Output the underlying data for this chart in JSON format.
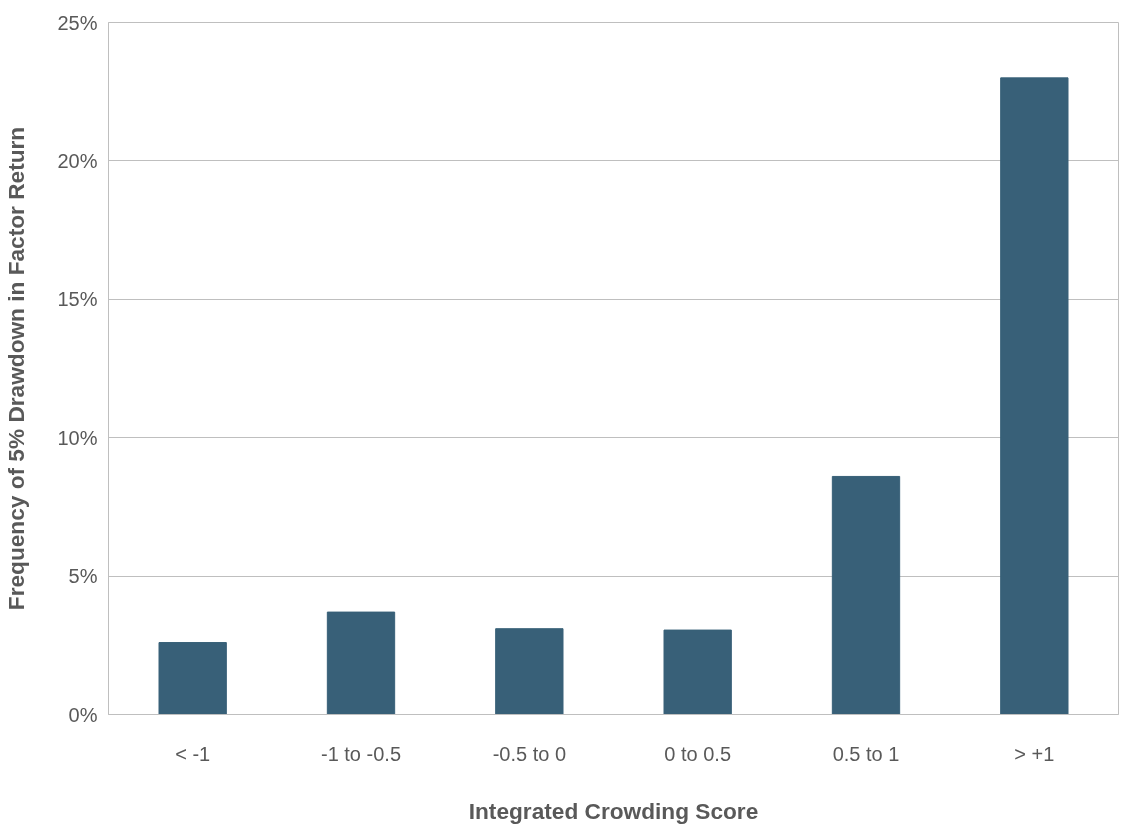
{
  "chart_data": {
    "type": "bar",
    "xlabel": "Integrated Crowding Score",
    "ylabel": "Frequency of 5% Drawdown in Factor Return",
    "categories": [
      "< -1",
      "-1 to -0.5",
      "-0.5 to 0",
      "0 to 0.5",
      "0.5 to 1",
      "> +1"
    ],
    "series": [
      {
        "color": "#386078",
        "values": [
          2.6,
          3.7,
          3.1,
          3.05,
          8.6,
          23.0
        ]
      }
    ],
    "ylim": [
      0,
      25
    ],
    "yticks": [
      {
        "value": 0,
        "label": "0%"
      },
      {
        "value": 5,
        "label": "5%"
      },
      {
        "value": 10,
        "label": "10%"
      },
      {
        "value": 15,
        "label": "15%"
      },
      {
        "value": 20,
        "label": "20%"
      },
      {
        "value": 25,
        "label": "25%"
      }
    ],
    "grid": "y"
  }
}
